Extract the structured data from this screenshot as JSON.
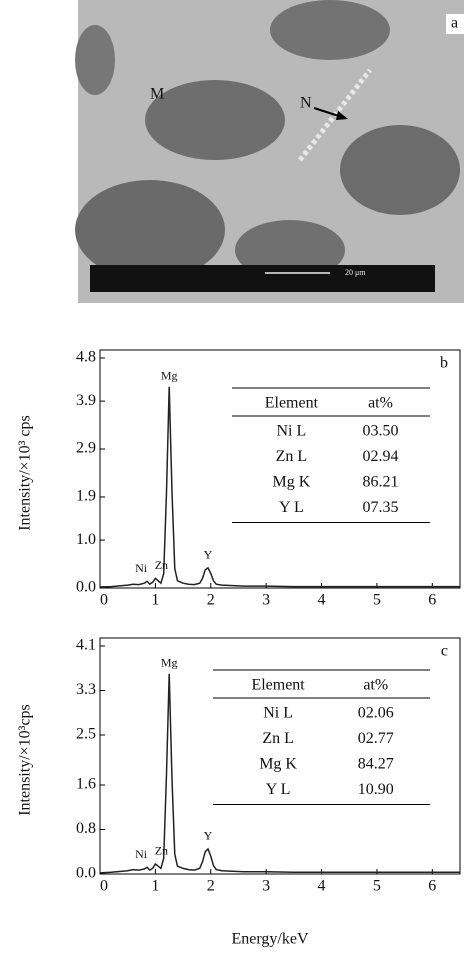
{
  "micrograph": {
    "label": "a",
    "annotations": [
      "M",
      "N"
    ],
    "scale_bar": "20 μm"
  },
  "chart_data": [
    {
      "type": "line",
      "panel_label": "b",
      "y_label": "Intensity/×10³ cps",
      "color": "#222222",
      "x": [
        0,
        0.2,
        0.4,
        0.5,
        0.6,
        0.7,
        0.8,
        0.85,
        0.9,
        0.95,
        1.0,
        1.05,
        1.1,
        1.15,
        1.2,
        1.25,
        1.3,
        1.35,
        1.4,
        1.5,
        1.6,
        1.7,
        1.8,
        1.85,
        1.9,
        1.95,
        2.0,
        2.05,
        2.1,
        2.2,
        2.4,
        2.6,
        3,
        3.5,
        4,
        4.5,
        5,
        5.5,
        6,
        6.5
      ],
      "values": [
        0.02,
        0.03,
        0.05,
        0.06,
        0.08,
        0.07,
        0.1,
        0.14,
        0.08,
        0.12,
        0.2,
        0.15,
        0.1,
        0.3,
        2.0,
        4.2,
        2.0,
        0.4,
        0.15,
        0.1,
        0.08,
        0.07,
        0.1,
        0.2,
        0.38,
        0.42,
        0.3,
        0.15,
        0.08,
        0.06,
        0.05,
        0.04,
        0.04,
        0.03,
        0.03,
        0.03,
        0.03,
        0.03,
        0.03,
        0.03
      ],
      "xlim": [
        0,
        6.5
      ],
      "ylim": [
        0,
        4.8
      ],
      "xticks": [
        0,
        1,
        2,
        3,
        4,
        5,
        6
      ],
      "yticks": [
        {
          "value": 0,
          "label": "0.0"
        },
        {
          "value": 1,
          "label": "1.0"
        },
        1.9,
        2.9,
        3.9,
        4.8
      ],
      "annotations": [
        "Ni",
        "Zn",
        "Mg",
        "Y"
      ],
      "table": {
        "header": [
          "Element",
          "at%"
        ],
        "rows": [
          [
            "Ni L",
            "03.50"
          ],
          [
            "Zn L",
            "02.94"
          ],
          [
            "Mg K",
            "86.21"
          ],
          [
            "Y L",
            "07.35"
          ]
        ]
      }
    },
    {
      "type": "line",
      "panel_label": "c",
      "y_label": "Intensity/×10³cps",
      "x_label": "Energy/keV",
      "color": "#222222",
      "x": [
        0,
        0.2,
        0.4,
        0.5,
        0.6,
        0.7,
        0.8,
        0.85,
        0.9,
        0.95,
        1.0,
        1.05,
        1.1,
        1.15,
        1.2,
        1.25,
        1.3,
        1.35,
        1.4,
        1.5,
        1.6,
        1.7,
        1.8,
        1.85,
        1.9,
        1.95,
        2.0,
        2.05,
        2.1,
        2.2,
        2.4,
        2.6,
        3,
        3.5,
        4,
        4.5,
        5,
        5.5,
        6,
        6.5
      ],
      "values": [
        0.02,
        0.03,
        0.05,
        0.06,
        0.08,
        0.07,
        0.09,
        0.12,
        0.07,
        0.1,
        0.18,
        0.14,
        0.1,
        0.28,
        1.8,
        3.6,
        1.7,
        0.35,
        0.14,
        0.1,
        0.08,
        0.07,
        0.1,
        0.22,
        0.4,
        0.45,
        0.32,
        0.15,
        0.08,
        0.06,
        0.05,
        0.04,
        0.04,
        0.03,
        0.03,
        0.03,
        0.03,
        0.03,
        0.03,
        0.03
      ],
      "xlim": [
        0,
        6.5
      ],
      "ylim": [
        0,
        4.1
      ],
      "xticks": [
        0,
        1,
        2,
        3,
        4,
        5,
        6
      ],
      "yticks": [
        {
          "value": 0,
          "label": "0.0"
        },
        0.8,
        1.6,
        2.5,
        3.3,
        4.1
      ],
      "annotations": [
        "Ni",
        "Zn",
        "Mg",
        "Y"
      ],
      "table": {
        "header": [
          "Element",
          "at%"
        ],
        "rows": [
          [
            "Ni L",
            "02.06"
          ],
          [
            "Zn L",
            "02.77"
          ],
          [
            "Mg K",
            "84.27"
          ],
          [
            "Y L",
            "10.90"
          ]
        ]
      }
    }
  ]
}
